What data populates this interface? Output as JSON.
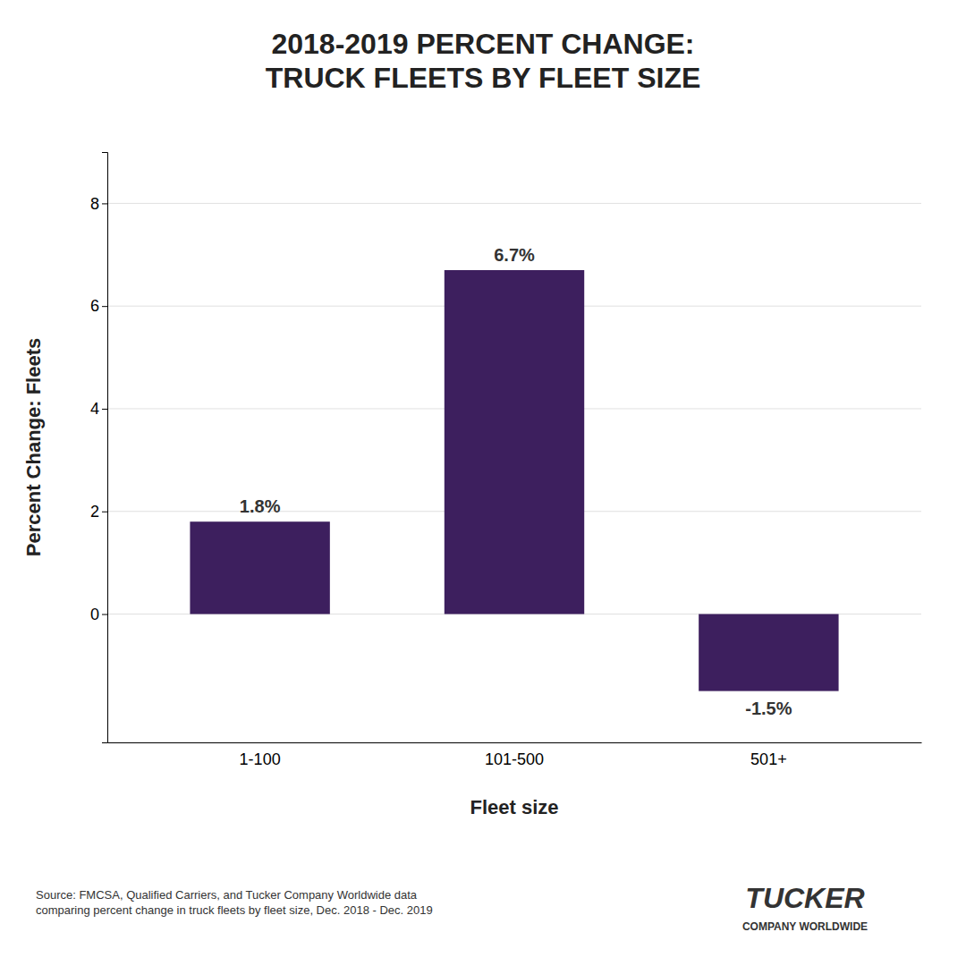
{
  "chart_data": {
    "type": "bar",
    "title": "2018-2019 PERCENT CHANGE:\nTRUCK FLEETS BY FLEET SIZE",
    "categories": [
      "1-100",
      "101-500",
      "501+"
    ],
    "values": [
      1.8,
      6.7,
      -1.5
    ],
    "value_labels": [
      "1.8%",
      "6.7%",
      "-1.5%"
    ],
    "data_labels": true,
    "color": "#3d1f5e",
    "xlabel": "Fleet size",
    "ylabel": "Percent Change: Fleets",
    "ylim": [
      -2.5,
      9
    ],
    "yticks": [
      0,
      2,
      4,
      6,
      8
    ],
    "grid": true,
    "annotations": [
      "Source: FMCSA, Qualified Carriers, and Tucker Company Worldwide data\ncomparing percent change in truck fleets by fleet size, Dec. 2018 - Dec. 2019",
      "TUCKER",
      "COMPANY WORLDWIDE"
    ]
  }
}
